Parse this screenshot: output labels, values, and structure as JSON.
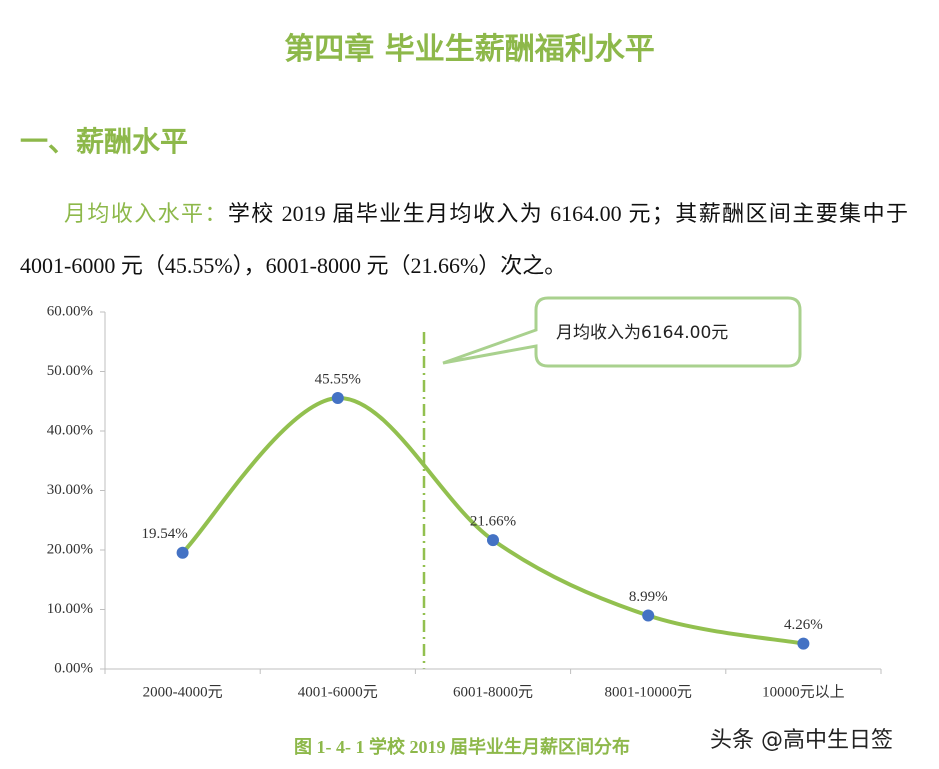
{
  "header": {
    "title": "第四章  毕业生薪酬福利水平",
    "section": "一、薪酬水平"
  },
  "paragraph": {
    "lead": "月均收入水平：",
    "text": "学校 2019 届毕业生月均收入为 6164.00 元；其薪酬区间主要集中于 4001-6000 元（45.55%），6001-8000 元（21.66%）次之。"
  },
  "chart_data": {
    "type": "line",
    "categories": [
      "2000-4000元",
      "4001-6000元",
      "6001-8000元",
      "8001-10000元",
      "10000元以上"
    ],
    "values": [
      19.54,
      45.55,
      21.66,
      8.99,
      4.26
    ],
    "value_labels": [
      "19.54%",
      "45.55%",
      "21.66%",
      "8.99%",
      "4.26%"
    ],
    "color": "#92c04f",
    "marker_color": "#4472c4",
    "smooth": true,
    "ylim": [
      0,
      60
    ],
    "yticks": [
      {
        "value": 0,
        "label": "0.00%"
      },
      {
        "value": 10,
        "label": "10.00%"
      },
      {
        "value": 20,
        "label": "20.00%"
      },
      {
        "value": 30,
        "label": "30.00%"
      },
      {
        "value": 40,
        "label": "40.00%"
      },
      {
        "value": 50,
        "label": "50.00%"
      },
      {
        "value": 60,
        "label": "60.00%"
      }
    ],
    "annotation": "月均收入为6164.00元"
  },
  "caption": "图 1- 4- 1   学校 2019 届毕业生月薪区间分布",
  "watermark": "头条 @高中生日签"
}
